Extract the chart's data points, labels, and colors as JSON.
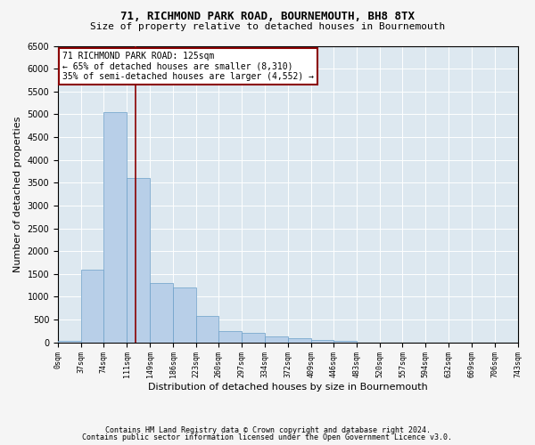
{
  "title1": "71, RICHMOND PARK ROAD, BOURNEMOUTH, BH8 8TX",
  "title2": "Size of property relative to detached houses in Bournemouth",
  "xlabel": "Distribution of detached houses by size in Bournemouth",
  "ylabel": "Number of detached properties",
  "footnote1": "Contains HM Land Registry data © Crown copyright and database right 2024.",
  "footnote2": "Contains public sector information licensed under the Open Government Licence v3.0.",
  "annotation_line1": "71 RICHMOND PARK ROAD: 125sqm",
  "annotation_line2": "← 65% of detached houses are smaller (8,310)",
  "annotation_line3": "35% of semi-detached houses are larger (4,552) →",
  "property_size": 125,
  "bin_edges": [
    0,
    37,
    74,
    111,
    149,
    186,
    223,
    260,
    297,
    334,
    372,
    409,
    446,
    483,
    520,
    557,
    594,
    632,
    669,
    706,
    743
  ],
  "bin_counts": [
    30,
    1600,
    5050,
    3600,
    1300,
    1200,
    580,
    250,
    200,
    130,
    100,
    60,
    30,
    0,
    0,
    0,
    0,
    0,
    0,
    0
  ],
  "bar_facecolor": "#b8cfe8",
  "bar_edgecolor": "#6b9fc8",
  "vline_color": "#8b0000",
  "vline_x": 125,
  "box_edgecolor": "#8b0000",
  "plot_bg": "#dde8f0",
  "grid_color": "#ffffff",
  "fig_bg": "#f5f5f5",
  "ylim": [
    0,
    6500
  ],
  "yticks": [
    0,
    500,
    1000,
    1500,
    2000,
    2500,
    3000,
    3500,
    4000,
    4500,
    5000,
    5500,
    6000,
    6500
  ],
  "title1_fontsize": 9,
  "title2_fontsize": 8,
  "ylabel_fontsize": 8,
  "xlabel_fontsize": 8,
  "ytick_fontsize": 7,
  "xtick_fontsize": 6,
  "footnote_fontsize": 6,
  "annot_fontsize": 7
}
